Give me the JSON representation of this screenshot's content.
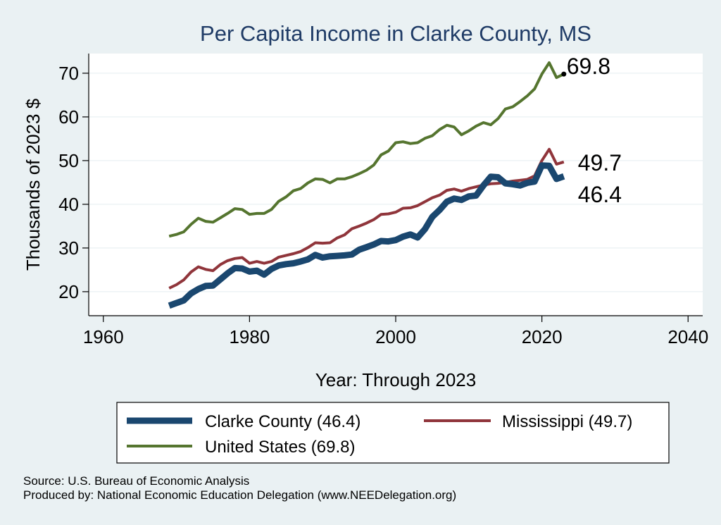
{
  "chart_data": {
    "type": "line",
    "title": "Per Capita Income in Clarke County, MS",
    "xlabel": "Year: Through 2023",
    "ylabel": "Thousands of 2023 $",
    "xlim": [
      1958,
      2042
    ],
    "ylim": [
      14.5,
      74.5
    ],
    "x_ticks": [
      1960,
      1980,
      2000,
      2020,
      2040
    ],
    "y_ticks": [
      20,
      30,
      40,
      50,
      60,
      70
    ],
    "grid": true,
    "legend_position": "bottom",
    "series": [
      {
        "name": "Clarke County (46.4)",
        "color": "#1a476f",
        "line_width": 9,
        "end_label": "46.4",
        "x": [
          1969,
          1970,
          1971,
          1972,
          1973,
          1974,
          1975,
          1976,
          1977,
          1978,
          1979,
          1980,
          1981,
          1982,
          1983,
          1984,
          1985,
          1986,
          1987,
          1988,
          1989,
          1990,
          1991,
          1992,
          1993,
          1994,
          1995,
          1996,
          1997,
          1998,
          1999,
          2000,
          2001,
          2002,
          2003,
          2004,
          2005,
          2006,
          2007,
          2008,
          2009,
          2010,
          2011,
          2012,
          2013,
          2014,
          2015,
          2016,
          2017,
          2018,
          2019,
          2020,
          2021,
          2022,
          2023
        ],
        "y": [
          16.8,
          17.4,
          18.0,
          19.6,
          20.6,
          21.3,
          21.4,
          22.8,
          24.2,
          25.4,
          25.3,
          24.6,
          24.8,
          23.9,
          25.2,
          26.0,
          26.3,
          26.5,
          26.9,
          27.4,
          28.4,
          27.8,
          28.1,
          28.2,
          28.3,
          28.5,
          29.6,
          30.2,
          30.8,
          31.6,
          31.5,
          31.8,
          32.6,
          33.1,
          32.4,
          34.3,
          37.1,
          38.7,
          40.6,
          41.3,
          41.0,
          41.8,
          42.0,
          44.3,
          46.3,
          46.2,
          44.8,
          44.6,
          44.3,
          44.9,
          45.2,
          48.9,
          48.8,
          45.8,
          46.4
        ]
      },
      {
        "name": "Mississippi (49.7)",
        "color": "#90353b",
        "line_width": 4,
        "end_label": "49.7",
        "x": [
          1969,
          1970,
          1971,
          1972,
          1973,
          1974,
          1975,
          1976,
          1977,
          1978,
          1979,
          1980,
          1981,
          1982,
          1983,
          1984,
          1985,
          1986,
          1987,
          1988,
          1989,
          1990,
          1991,
          1992,
          1993,
          1994,
          1995,
          1996,
          1997,
          1998,
          1999,
          2000,
          2001,
          2002,
          2003,
          2004,
          2005,
          2006,
          2007,
          2008,
          2009,
          2010,
          2011,
          2012,
          2013,
          2014,
          2015,
          2016,
          2017,
          2018,
          2019,
          2020,
          2021,
          2022,
          2023
        ],
        "y": [
          20.8,
          21.6,
          22.7,
          24.5,
          25.7,
          25.1,
          24.8,
          26.2,
          27.1,
          27.6,
          27.8,
          26.5,
          26.9,
          26.5,
          26.9,
          27.9,
          28.3,
          28.7,
          29.2,
          30.1,
          31.2,
          31.1,
          31.2,
          32.3,
          33.0,
          34.4,
          35.0,
          35.7,
          36.5,
          37.7,
          37.8,
          38.2,
          39.1,
          39.2,
          39.7,
          40.6,
          41.5,
          42.1,
          43.2,
          43.5,
          43.0,
          43.6,
          44.0,
          44.4,
          44.7,
          44.8,
          45.0,
          45.3,
          45.5,
          45.7,
          46.5,
          50.0,
          52.6,
          49.2,
          49.7
        ]
      },
      {
        "name": "United States (69.8)",
        "color": "#55752f",
        "line_width": 4,
        "end_label": "69.8",
        "x": [
          1969,
          1970,
          1971,
          1972,
          1973,
          1974,
          1975,
          1976,
          1977,
          1978,
          1979,
          1980,
          1981,
          1982,
          1983,
          1984,
          1985,
          1986,
          1987,
          1988,
          1989,
          1990,
          1991,
          1992,
          1993,
          1994,
          1995,
          1996,
          1997,
          1998,
          1999,
          2000,
          2001,
          2002,
          2003,
          2004,
          2005,
          2006,
          2007,
          2008,
          2009,
          2010,
          2011,
          2012,
          2013,
          2014,
          2015,
          2016,
          2017,
          2018,
          2019,
          2020,
          2021,
          2022,
          2023
        ],
        "y": [
          32.7,
          33.1,
          33.7,
          35.4,
          36.8,
          36.1,
          35.9,
          36.9,
          37.9,
          39.0,
          38.8,
          37.7,
          37.9,
          37.9,
          38.8,
          40.7,
          41.7,
          43.1,
          43.6,
          44.9,
          45.8,
          45.7,
          44.9,
          45.8,
          45.8,
          46.3,
          47.0,
          47.8,
          49.0,
          51.3,
          52.2,
          54.1,
          54.3,
          53.9,
          54.1,
          55.1,
          55.7,
          57.1,
          58.1,
          57.7,
          55.9,
          56.8,
          57.9,
          58.7,
          58.2,
          59.6,
          61.8,
          62.3,
          63.5,
          64.8,
          66.4,
          69.8,
          72.4,
          69.0,
          69.8
        ]
      }
    ],
    "source_lines": [
      "Source: U.S. Bureau of Economic Analysis",
      "Produced by: National Economic Education Delegation (www.NEEDelegation.org)"
    ]
  }
}
